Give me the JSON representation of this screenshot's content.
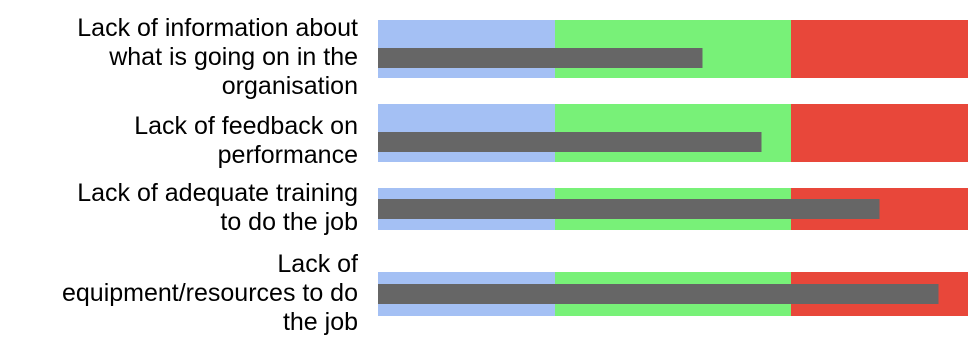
{
  "chart_data": {
    "type": "bar",
    "orientation": "horizontal",
    "variant": "bullet",
    "title": "",
    "xlabel": "",
    "ylabel": "",
    "xlim": [
      0,
      100
    ],
    "grid": false,
    "legend": "none",
    "bands": [
      {
        "from": 0,
        "to": 30,
        "color": "#a4c0f4"
      },
      {
        "from": 30,
        "to": 70,
        "color": "#78f178"
      },
      {
        "from": 70,
        "to": 100,
        "color": "#e8473a"
      }
    ],
    "bar_color": "#666666",
    "categories": [
      "Lack of information about what is going on in the organisation",
      "Lack of feedback on performance",
      "Lack of adequate training to do the job",
      "Lack of equipment/resources to do the job"
    ],
    "label_lines": [
      [
        "Lack of information about",
        "what is going on in the",
        "organisation"
      ],
      [
        "Lack of feedback on",
        "performance"
      ],
      [
        "Lack of adequate training",
        "to do the job"
      ],
      [
        "Lack of",
        "equipment/resources to do",
        "the job"
      ]
    ],
    "values": [
      55,
      65,
      85,
      95
    ]
  }
}
